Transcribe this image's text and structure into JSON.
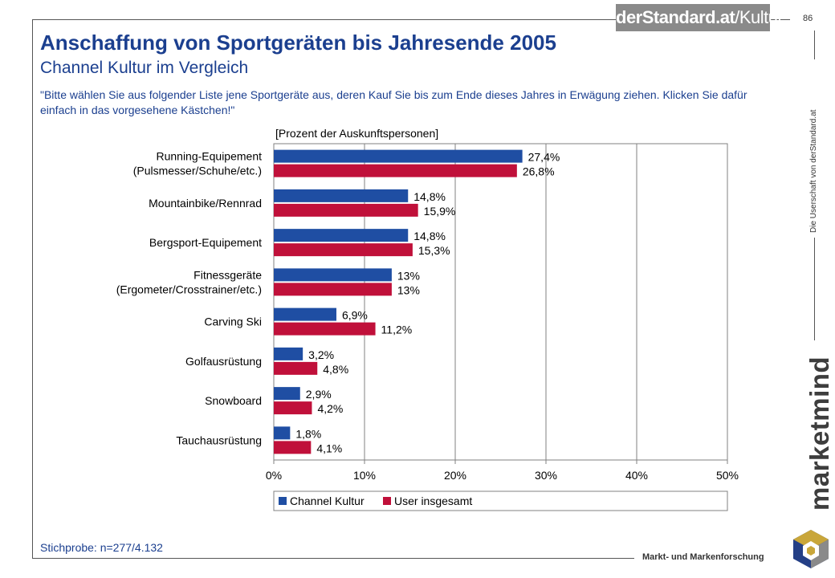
{
  "header": {
    "brand_bold": "derStandard.at",
    "brand_rest": "/Kultur",
    "page_number": "86"
  },
  "title": "Anschaffung von Sportgeräten bis Jahresende 2005",
  "subtitle": "Channel Kultur im Vergleich",
  "question": "\"Bitte wählen Sie aus folgender Liste jene Sportgeräte aus, deren Kauf Sie bis zum Ende dieses Jahres in Erwägung ziehen. Klicken Sie dafür einfach in das vorgesehene Kästchen!\"",
  "footer": {
    "sample": "Stichprobe: n=277/4.132",
    "ownership": "Die Userschaft von derStandard.at",
    "logo": "marketmind",
    "subbrand": "Markt- und Markenforschung"
  },
  "chart_data": {
    "type": "bar",
    "orientation": "horizontal",
    "unit_label": "[Prozent der Auskunftspersonen]",
    "categories": [
      [
        "Running-Equipement",
        "(Pulsmesser/Schuhe/etc.)"
      ],
      [
        "Mountainbike/Rennrad"
      ],
      [
        "Bergsport-Equipement"
      ],
      [
        "Fitnessgeräte",
        "(Ergometer/Crosstrainer/etc.)"
      ],
      [
        "Carving Ski"
      ],
      [
        "Golfausrüstung"
      ],
      [
        "Snowboard"
      ],
      [
        "Tauchausrüstung"
      ]
    ],
    "series": [
      {
        "name": "Channel Kultur",
        "color": "#1f4ea3",
        "values": [
          27.4,
          14.8,
          14.8,
          13,
          6.9,
          3.2,
          2.9,
          1.8
        ],
        "labels": [
          "27,4%",
          "14,8%",
          "14,8%",
          "13%",
          "6,9%",
          "3,2%",
          "2,9%",
          "1,8%"
        ]
      },
      {
        "name": "User insgesamt",
        "color": "#c0103a",
        "values": [
          26.8,
          15.9,
          15.3,
          13,
          11.2,
          4.8,
          4.2,
          4.1
        ],
        "labels": [
          "26,8%",
          "15,9%",
          "15,3%",
          "13%",
          "11,2%",
          "4,8%",
          "4,2%",
          "4,1%"
        ]
      }
    ],
    "xlim": [
      0,
      50
    ],
    "xticks": [
      "0%",
      "10%",
      "20%",
      "30%",
      "40%",
      "50%"
    ],
    "grid": true,
    "legend_position": "bottom"
  }
}
